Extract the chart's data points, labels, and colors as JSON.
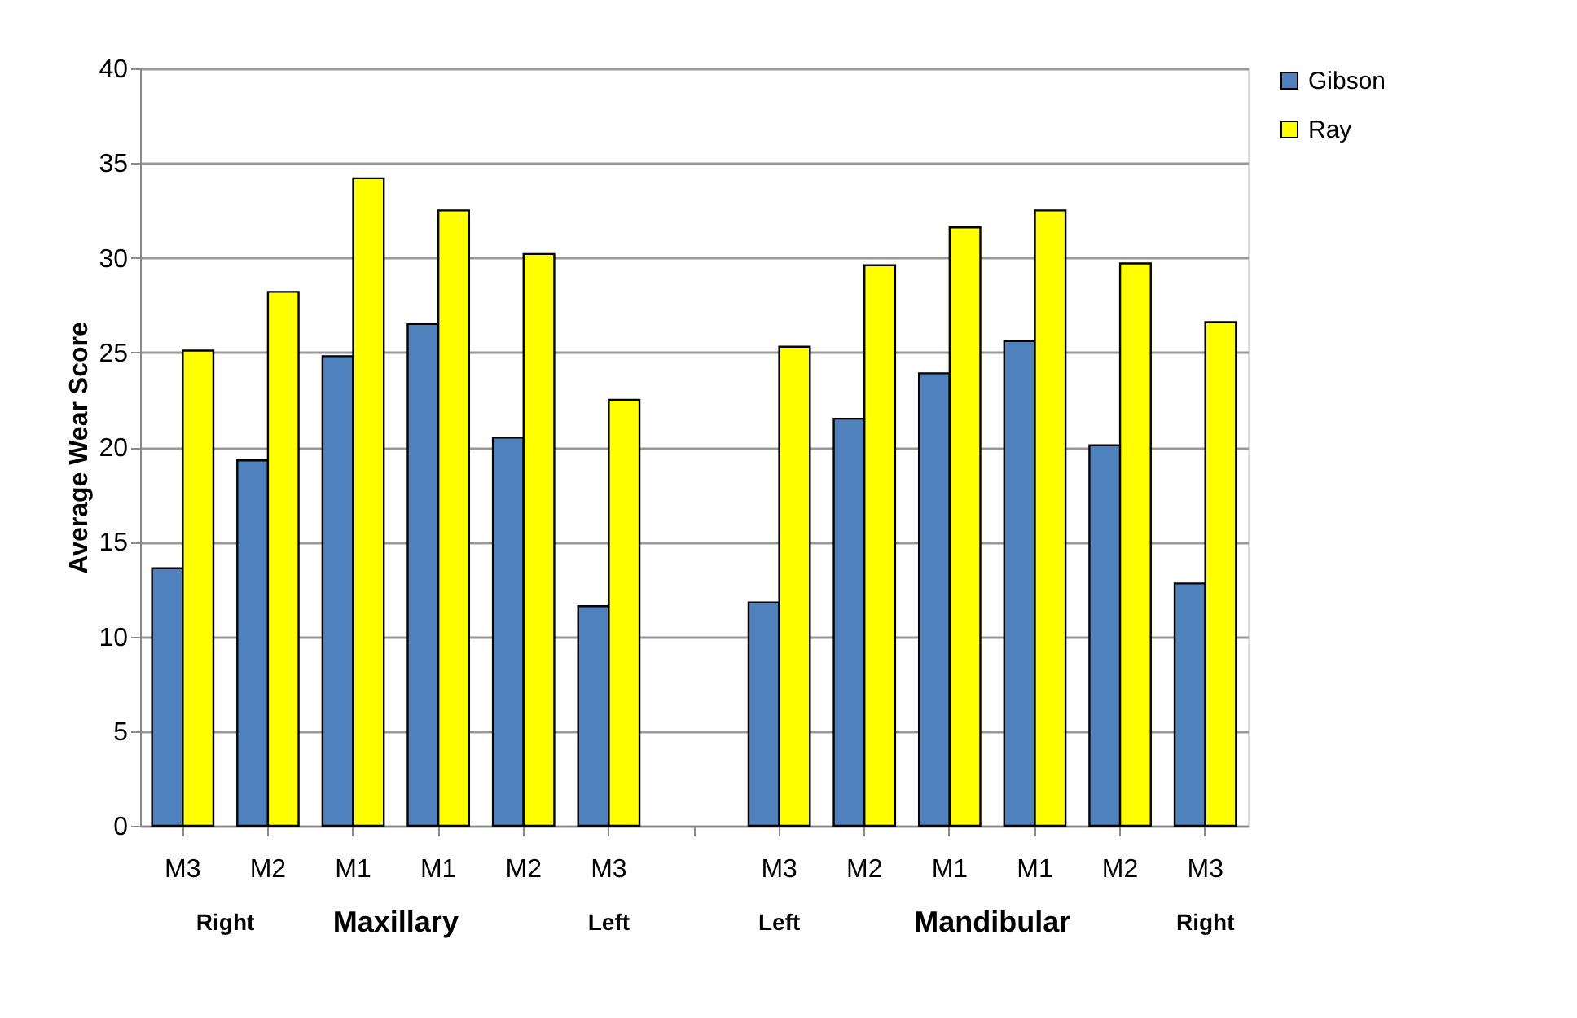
{
  "chart_data": {
    "type": "bar",
    "ylabel": "Average Wear Score",
    "categories": [
      "M3",
      "M2",
      "M1",
      "M1",
      "M2",
      "M3",
      null,
      "M3",
      "M2",
      "M1",
      "M1",
      "M2",
      "M3"
    ],
    "series": [
      {
        "name": "Gibson",
        "color": "#4f81bd",
        "values": [
          13.6,
          19.3,
          24.8,
          26.5,
          20.5,
          11.6,
          null,
          11.8,
          21.5,
          23.9,
          25.6,
          20.1,
          12.8
        ]
      },
      {
        "name": "Ray",
        "color": "#ffff00",
        "values": [
          25.1,
          28.2,
          34.2,
          32.5,
          30.2,
          22.5,
          null,
          25.3,
          29.6,
          31.6,
          32.5,
          29.7,
          26.6
        ]
      }
    ],
    "annotations": [
      "Right",
      "Maxillary",
      "Left",
      "Left",
      "Mandibular",
      "Right"
    ],
    "ylim": [
      0,
      40
    ],
    "yticks": [
      0,
      5,
      10,
      15,
      20,
      25,
      30,
      35,
      40
    ],
    "grid": "y",
    "legend": "right"
  }
}
